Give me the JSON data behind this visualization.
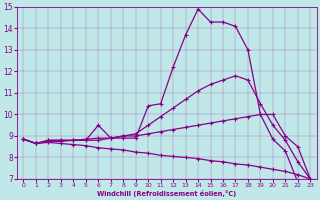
{
  "xlabel": "Windchill (Refroidissement éolien,°C)",
  "background_color": "#c0e8e8",
  "line_color": "#880088",
  "xlim": [
    -0.5,
    23.5
  ],
  "ylim": [
    7,
    15
  ],
  "xticks": [
    0,
    1,
    2,
    3,
    4,
    5,
    6,
    7,
    8,
    9,
    10,
    11,
    12,
    13,
    14,
    15,
    16,
    17,
    18,
    19,
    20,
    21,
    22,
    23
  ],
  "yticks": [
    7,
    8,
    9,
    10,
    11,
    12,
    13,
    14,
    15
  ],
  "lines": [
    {
      "x": [
        0,
        1,
        2,
        3,
        4,
        5,
        6,
        7,
        8,
        9,
        10,
        11,
        12,
        13,
        14,
        15,
        16,
        17,
        18,
        19,
        20,
        21,
        22,
        23
      ],
      "y": [
        8.85,
        8.65,
        8.8,
        8.8,
        8.8,
        8.8,
        9.5,
        8.9,
        8.9,
        8.9,
        10.4,
        10.5,
        12.2,
        13.7,
        14.9,
        14.3,
        14.3,
        14.1,
        13.0,
        10.0,
        8.85,
        8.3,
        6.85,
        6.85
      ]
    },
    {
      "x": [
        0,
        1,
        2,
        3,
        4,
        5,
        6,
        7,
        8,
        9,
        10,
        11,
        12,
        13,
        14,
        15,
        16,
        17,
        18,
        19,
        20,
        21,
        22,
        23
      ],
      "y": [
        8.85,
        8.65,
        8.8,
        8.8,
        8.8,
        8.8,
        8.8,
        8.9,
        9.0,
        9.1,
        9.5,
        9.9,
        10.3,
        10.7,
        11.1,
        11.4,
        11.6,
        11.8,
        11.6,
        10.5,
        9.5,
        8.8,
        7.8,
        7.0
      ]
    },
    {
      "x": [
        0,
        1,
        2,
        3,
        4,
        5,
        6,
        7,
        8,
        9,
        10,
        11,
        12,
        13,
        14,
        15,
        16,
        17,
        18,
        19,
        20,
        21,
        22,
        23
      ],
      "y": [
        8.85,
        8.65,
        8.75,
        8.75,
        8.8,
        8.85,
        8.9,
        8.9,
        9.0,
        9.0,
        9.1,
        9.2,
        9.3,
        9.4,
        9.5,
        9.6,
        9.7,
        9.8,
        9.9,
        10.0,
        10.0,
        9.0,
        8.5,
        7.0
      ]
    },
    {
      "x": [
        0,
        1,
        2,
        3,
        4,
        5,
        6,
        7,
        8,
        9,
        10,
        11,
        12,
        13,
        14,
        15,
        16,
        17,
        18,
        19,
        20,
        21,
        22,
        23
      ],
      "y": [
        8.85,
        8.65,
        8.7,
        8.65,
        8.6,
        8.55,
        8.45,
        8.4,
        8.35,
        8.25,
        8.2,
        8.1,
        8.05,
        8.0,
        7.95,
        7.85,
        7.8,
        7.7,
        7.65,
        7.55,
        7.45,
        7.35,
        7.2,
        7.0
      ]
    }
  ]
}
